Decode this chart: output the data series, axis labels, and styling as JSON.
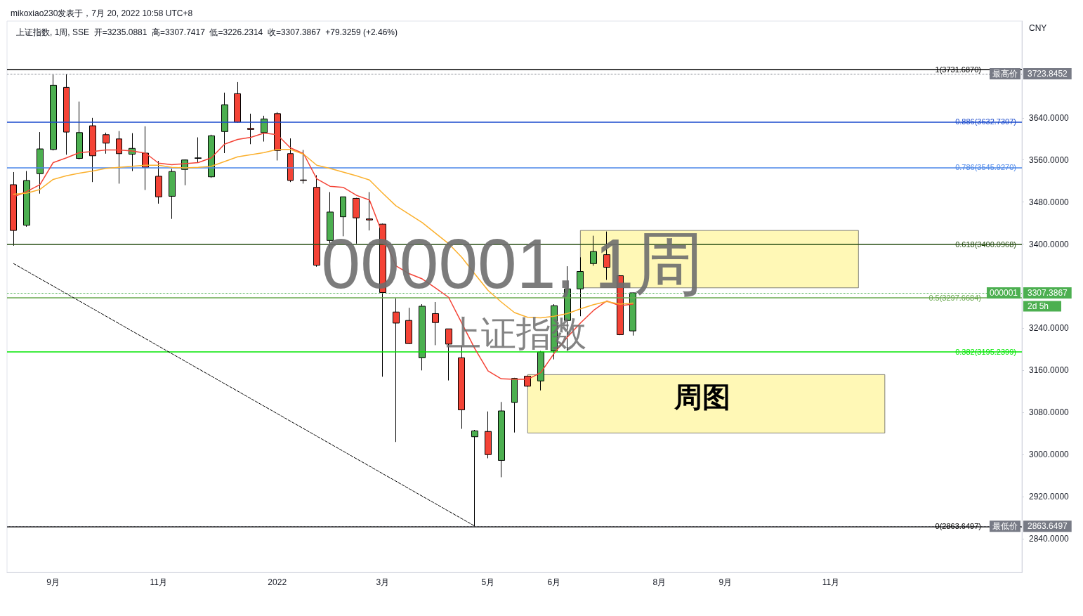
{
  "chart_data": {
    "type": "candlestick",
    "title": "上证指数, 1周, SSE  开=3235.0881  高=3307.7417  低=3226.2314  收=3307.3867  +79.3259 (+2.46%)",
    "subtitle": "mikoxiao230发表于，7月 20, 2022 10:58 UTC+8",
    "ylabel": "CNY",
    "categories": [
      null,
      null,
      null,
      "9月",
      null,
      null,
      null,
      null,
      null,
      null,
      null,
      "11月",
      null,
      null,
      null,
      null,
      null,
      null,
      null,
      null,
      "2022",
      null,
      null,
      null,
      null,
      null,
      null,
      null,
      "3月",
      null,
      null,
      null,
      null,
      null,
      null,
      null,
      "5月",
      null,
      null,
      null,
      null,
      "6月",
      null,
      null,
      null,
      null,
      null,
      null,
      null,
      "8月",
      null,
      null,
      null,
      null,
      "9月",
      null,
      null,
      null,
      null,
      null,
      null,
      null,
      "11月",
      null,
      null,
      null,
      null,
      null,
      null,
      null,
      null,
      null,
      null,
      null,
      null,
      null,
      null
    ],
    "ohlc": [
      [
        3513,
        3537,
        3397,
        3426
      ],
      [
        3436,
        3539,
        3433,
        3521
      ],
      [
        3534,
        3613,
        3496,
        3581
      ],
      [
        3580,
        3722,
        3578,
        3702
      ],
      [
        3698,
        3723.8452,
        3570,
        3613
      ],
      [
        3563,
        3671,
        3561,
        3612
      ],
      [
        3625,
        3640,
        3518,
        3568
      ],
      [
        3608,
        3612,
        3572,
        3592
      ],
      [
        3600,
        3615,
        3515,
        3572
      ],
      [
        3571,
        3611,
        3539,
        3582
      ],
      [
        3573,
        3624,
        3503,
        3546
      ],
      [
        3529,
        3558,
        3477,
        3490
      ],
      [
        3491,
        3543,
        3448,
        3538
      ],
      [
        3542,
        3561,
        3512,
        3560
      ],
      [
        3563,
        3603,
        3555,
        3564
      ],
      [
        3528,
        3608,
        3526,
        3606
      ],
      [
        3614,
        3688,
        3573,
        3665
      ],
      [
        3686,
        3708,
        3631,
        3632
      ],
      [
        3620,
        3648,
        3590,
        3618
      ],
      [
        3612,
        3644,
        3595,
        3638
      ],
      [
        3648,
        3651,
        3559,
        3578
      ],
      [
        3572,
        3601,
        3518,
        3521
      ],
      [
        3522,
        3579,
        3515,
        3521
      ],
      [
        3508,
        3531,
        3357,
        3360
      ],
      [
        3407,
        3499,
        3392,
        3461
      ],
      [
        3452,
        3490,
        3415,
        3490
      ],
      [
        3487,
        3488,
        3401,
        3450
      ],
      [
        3448,
        3499,
        3426,
        3446
      ],
      [
        3438,
        3439,
        3148,
        3308
      ],
      [
        3271,
        3297,
        3024,
        3250
      ],
      [
        3255,
        3279,
        3210,
        3211
      ],
      [
        3184,
        3286,
        3160,
        3282
      ],
      [
        3268,
        3290,
        3208,
        3251
      ],
      [
        3239,
        3239,
        3141,
        3210
      ],
      [
        3184,
        3207,
        3049,
        3085
      ],
      [
        3034,
        3047,
        2863.6497,
        3045
      ],
      [
        3044,
        3082,
        2993,
        3000
      ],
      [
        2989,
        3100,
        2957,
        3083
      ],
      [
        3099,
        3146,
        3042,
        3145
      ],
      [
        3149,
        3150,
        3129,
        3130
      ],
      [
        3140,
        3197,
        3122,
        3195
      ],
      [
        3197,
        3286,
        3181,
        3283
      ],
      [
        3255,
        3358,
        3197,
        3315
      ],
      [
        3315,
        3375,
        3263,
        3348
      ],
      [
        3363,
        3416,
        3359,
        3386
      ],
      [
        3380,
        3424,
        3332,
        3356
      ],
      [
        3340,
        3341,
        3227,
        3228
      ],
      [
        3235.0881,
        3307.7417,
        3226.2314,
        3307.3867
      ],
      null,
      null,
      null,
      null,
      null,
      null,
      null,
      null,
      null,
      null,
      null,
      null,
      null,
      null,
      null,
      null,
      null,
      null,
      null,
      null,
      null,
      null,
      null,
      null,
      null,
      null,
      null,
      null,
      null
    ],
    "colors": [
      "#f44336",
      "#4caf50",
      "#4caf50",
      "#4caf50",
      "#f44336",
      "#4caf50",
      "#f44336",
      "#f44336",
      "#f44336",
      "#4caf50",
      "#f44336",
      "#f44336",
      "#4caf50",
      "#4caf50",
      "#4caf50",
      "#4caf50",
      "#4caf50",
      "#f44336",
      "#f44336",
      "#4caf50",
      "#f44336",
      "#f44336",
      "#f44336",
      "#f44336",
      "#4caf50",
      "#4caf50",
      "#f44336",
      "#f44336",
      "#f44336",
      "#f44336",
      "#f44336",
      "#4caf50",
      "#f44336",
      "#f44336",
      "#f44336",
      "#4caf50",
      "#f44336",
      "#4caf50",
      "#4caf50",
      "#f44336",
      "#4caf50",
      "#4caf50",
      "#4caf50",
      "#4caf50",
      "#4caf50",
      "#f44336",
      "#f44336",
      "#4caf50",
      null,
      null,
      null,
      null,
      null,
      null,
      null,
      null,
      null,
      null,
      null,
      null,
      null,
      null,
      null,
      null,
      null,
      null,
      null,
      null,
      null,
      null,
      null,
      null,
      null,
      null,
      null,
      null,
      null
    ],
    "series": [
      {
        "type": "line",
        "color": "#f44336",
        "values": [
          3490,
          3500,
          3513,
          3555,
          3564,
          3574,
          3576,
          3579,
          3579,
          3577,
          3573,
          3554,
          3551,
          3553,
          3555,
          3564,
          3590,
          3599,
          3603,
          3611,
          3608,
          3583,
          3572,
          3524,
          3510,
          3508,
          3493,
          3484,
          3419,
          3359,
          3344,
          3334,
          3317,
          3299,
          3250,
          3201,
          3159,
          3144,
          3143,
          3143,
          3156,
          3192,
          3223,
          3250,
          3274,
          3292,
          3283,
          3286,
          null,
          null,
          null,
          null,
          null,
          null,
          null,
          null,
          null,
          null,
          null,
          null,
          null,
          null,
          null,
          null,
          null,
          null,
          null,
          null,
          null,
          null,
          null,
          null,
          null,
          null,
          null,
          null,
          null
        ]
      },
      {
        "type": "line",
        "color": "#fbb02d",
        "values": [
          3495,
          3497,
          3504,
          3523,
          3530,
          3535,
          3539,
          3544,
          3546,
          3548,
          3550,
          3550,
          3546,
          3545,
          3546,
          3548,
          3557,
          3566,
          3570,
          3574,
          3580,
          3580,
          3571,
          3550,
          3544,
          3537,
          3530,
          3522,
          3497,
          3473,
          3457,
          3441,
          3421,
          3401,
          3375,
          3343,
          3312,
          3290,
          3270,
          3261,
          3260,
          3263,
          3268,
          3277,
          3285,
          3291,
          3286,
          3288,
          null,
          null,
          null,
          null,
          null,
          null,
          null,
          null,
          null,
          null,
          null,
          null,
          null,
          null,
          null,
          null,
          null,
          null,
          null,
          null,
          null,
          null,
          null,
          null,
          null,
          null,
          null,
          null,
          null
        ]
      },
      {
        "type": "line",
        "color": "#000000",
        "line_style": "dashed",
        "values": [
          3363,
          null,
          null,
          null,
          null,
          null,
          null,
          null,
          null,
          null,
          null,
          null,
          null,
          null,
          null,
          null,
          null,
          null,
          null,
          null,
          null,
          null,
          null,
          null,
          null,
          null,
          null,
          null,
          null,
          null,
          null,
          null,
          null,
          null,
          null,
          2864,
          null,
          null,
          null,
          null,
          null,
          null,
          null,
          null,
          null,
          null,
          null,
          null,
          null,
          null,
          null,
          null,
          null,
          null,
          null,
          null,
          null,
          null,
          null,
          null,
          null,
          null,
          null,
          null,
          null,
          null,
          null,
          null,
          null,
          null,
          null,
          null,
          null,
          null,
          null,
          null,
          null
        ]
      }
    ],
    "marker": "none",
    "ylim": [
      2776,
      3824
    ],
    "yticks": [
      {
        "value": 2840,
        "label": "2840.0000"
      },
      {
        "value": 2920,
        "label": "2920.0000"
      },
      {
        "value": 3000,
        "label": "3000.0000"
      },
      {
        "value": 3080,
        "label": "3080.0000"
      },
      {
        "value": 3160,
        "label": "3160.0000"
      },
      {
        "value": 3240,
        "label": "3240.0000"
      },
      {
        "value": 3400,
        "label": "3400.0000"
      },
      {
        "value": 3480,
        "label": "3480.0000"
      },
      {
        "value": 3560,
        "label": "3560.0000"
      },
      {
        "value": 3640,
        "label": "3640.0000"
      }
    ],
    "ref_lines": [
      {
        "axis": "y",
        "value": 3731.687,
        "label": "1(3731.6870)",
        "color": "#000000"
      },
      {
        "axis": "y",
        "value": 3723.8452,
        "label": "3723.8452",
        "color": "#787b86",
        "line_style": "dotted"
      },
      {
        "axis": "y",
        "value": 3632.7307,
        "label": "0.886(3632.7307)",
        "color": "#1848cc"
      },
      {
        "axis": "y",
        "value": 3545.927,
        "label": "0.786(3545.9270)",
        "color": "#4a86e8"
      },
      {
        "axis": "y",
        "value": 3400.0968,
        "label": "0.618(3400.0968)",
        "color": "#274e13"
      },
      {
        "axis": "y",
        "value": 3307.3867,
        "label": "3307.3867",
        "color": "#4caf50",
        "line_style": "dotted"
      },
      {
        "axis": "y",
        "value": 3297.6684,
        "label": "0.5(3297.6684)",
        "color": "#6aa84f"
      },
      {
        "axis": "y",
        "value": 3195.2399,
        "label": "0.382(3195.2399)",
        "color": "#00e600"
      },
      {
        "axis": "y",
        "value": 2863.6497,
        "label": "0(2863.6497)",
        "color": "#000000"
      },
      {
        "axis": "y",
        "value": 2863.6497,
        "label": "2863.6497",
        "color": "#787b86",
        "line_style": "dotted"
      }
    ],
    "bands": [
      {
        "axis": "y",
        "from": 3317,
        "to": 3426,
        "color": "#fff59d"
      },
      {
        "axis": "y",
        "from": 3041,
        "to": 3152,
        "color": "#fff59d"
      }
    ],
    "annotations": [
      "000001, 1周",
      "上证指数",
      "周图",
      "2d 5h",
      {
        "text": "最高价",
        "y": 3723.8452
      },
      {
        "text": "000001",
        "y": 3307.3867
      },
      {
        "text": "最低价",
        "y": 2863.6497
      }
    ],
    "grid": false
  }
}
